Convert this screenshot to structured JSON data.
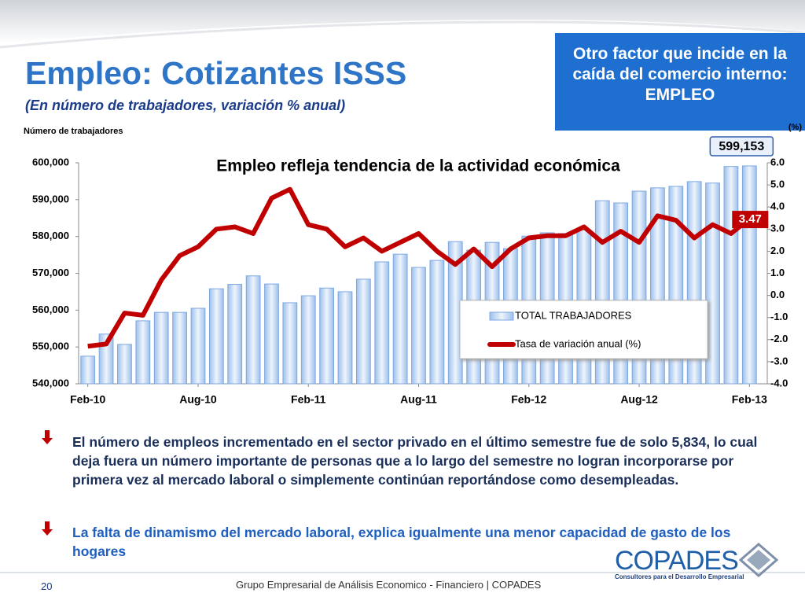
{
  "header": {
    "title": "Empleo: Cotizantes ISSS",
    "subtitle": "(En número de trabajadores, variación % anual)"
  },
  "callout": "Otro factor que incide en la caída del comercio interno: EMPLEO",
  "chart_data": {
    "type": "combo",
    "title": "Empleo refleja tendencia de la actividad económica",
    "y_label": "Número de trabajadores",
    "y2_label": "(%)",
    "categories": [
      "Feb-10",
      null,
      null,
      null,
      null,
      null,
      "Aug-10",
      null,
      null,
      null,
      null,
      null,
      "Feb-11",
      null,
      null,
      null,
      null,
      null,
      "Aug-11",
      null,
      null,
      null,
      null,
      null,
      "Feb-12",
      null,
      null,
      null,
      null,
      null,
      "Aug-12",
      null,
      null,
      null,
      null,
      null,
      "Feb-13"
    ],
    "series": [
      {
        "name": "TOTAL TRABAJADORES",
        "type": "bar",
        "color": "#7fa8e0",
        "values": [
          547500,
          553500,
          550700,
          557100,
          559400,
          559400,
          560500,
          565800,
          567000,
          569300,
          567100,
          562000,
          563900,
          566000,
          565000,
          568400,
          573100,
          575200,
          571600,
          573500,
          578600,
          576300,
          578400,
          576700,
          580100,
          581000,
          580800,
          581800,
          589700,
          589100,
          592300,
          593200,
          593600,
          594900,
          594500,
          599000,
          599153
        ],
        "value_labels": [
          null,
          null,
          null,
          null,
          null,
          null,
          null,
          null,
          null,
          null,
          null,
          null,
          null,
          null,
          null,
          null,
          null,
          null,
          null,
          null,
          null,
          null,
          null,
          null,
          null,
          null,
          null,
          null,
          null,
          null,
          null,
          null,
          null,
          null,
          null,
          null,
          "599,153"
        ]
      },
      {
        "name": "Tasa de variación anual (%)",
        "type": "line",
        "axis": "y2",
        "color": "#c00000",
        "values": [
          -2.3,
          -2.2,
          -0.8,
          -0.9,
          0.7,
          1.8,
          2.2,
          3.0,
          3.1,
          2.8,
          4.4,
          4.8,
          3.2,
          3.0,
          2.2,
          2.6,
          2.0,
          2.4,
          2.8,
          2.0,
          1.4,
          2.1,
          1.3,
          2.1,
          2.6,
          2.7,
          2.7,
          3.1,
          2.4,
          2.9,
          2.4,
          3.6,
          3.4,
          2.6,
          3.2,
          2.8,
          3.47
        ],
        "value_labels": [
          null,
          null,
          null,
          null,
          null,
          null,
          null,
          null,
          null,
          null,
          null,
          null,
          null,
          null,
          null,
          null,
          null,
          null,
          null,
          null,
          null,
          null,
          null,
          null,
          null,
          null,
          null,
          null,
          null,
          null,
          null,
          null,
          null,
          null,
          null,
          null,
          "3.47"
        ]
      }
    ],
    "ylim": [
      540000,
      600000
    ],
    "yticks": [
      {
        "value": 540000,
        "label": "540,000"
      },
      {
        "value": 550000,
        "label": "550,000"
      },
      {
        "value": 560000,
        "label": "560,000"
      },
      {
        "value": 570000,
        "label": "570,000"
      },
      {
        "value": 580000,
        "label": "580,000"
      },
      {
        "value": 590000,
        "label": "590,000"
      },
      {
        "value": 600000,
        "label": "600,000"
      }
    ],
    "y2lim": [
      -4,
      6
    ],
    "y2ticks": [
      {
        "value": -4,
        "label": "-4.0"
      },
      {
        "value": -3,
        "label": "-3.0"
      },
      {
        "value": -2,
        "label": "-2.0"
      },
      {
        "value": -1,
        "label": "-1.0"
      },
      {
        "value": 0,
        "label": "0.0"
      },
      {
        "value": 1,
        "label": "1.0"
      },
      {
        "value": 2,
        "label": "2.0"
      },
      {
        "value": 3,
        "label": "3.0"
      },
      {
        "value": 4,
        "label": "4.0"
      },
      {
        "value": 5,
        "label": "5.0"
      },
      {
        "value": 6,
        "label": "6.0"
      }
    ],
    "grid": false,
    "legend": "bottom-right"
  },
  "bullets": [
    "El número de empleos incrementado en el sector privado en el último semestre fue de solo 5,834, lo cual deja fuera un número importante de personas que a lo largo del semestre no logran incorporarse por primera vez al mercado laboral o simplemente continúan reportándose como desempleadas.",
    "La falta de dinamismo del mercado laboral, explica igualmente una menor capacidad de gasto de los hogares"
  ],
  "logo": {
    "name": "COPADES",
    "tagline": "Consultores para el Desarrollo Empresarial"
  },
  "footer": {
    "page": "20",
    "text": "Grupo Empresarial de Análisis Economico - Financiero | COPADES"
  }
}
